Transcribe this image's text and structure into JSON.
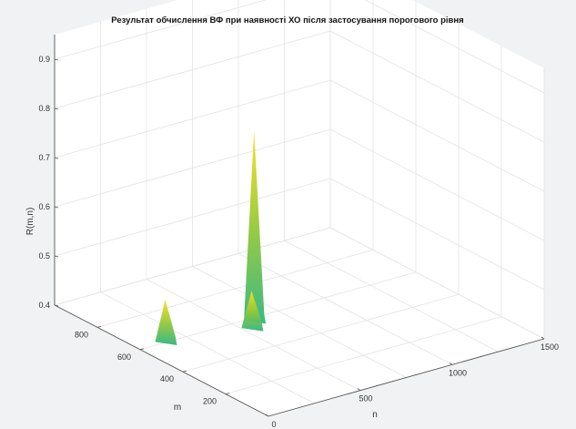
{
  "chart_data": {
    "type": "surface3d",
    "title": "Результат обчислення ВФ при наявності ХО після застосування порогового рівня",
    "xlabel": "n",
    "ylabel": "m",
    "zlabel": "R(m,n)",
    "xlim": [
      0,
      1500
    ],
    "ylim": [
      0,
      1000
    ],
    "zlim": [
      0.4,
      0.95
    ],
    "x_ticks": [
      0,
      500,
      1000,
      1500
    ],
    "y_ticks": [
      200,
      400,
      600,
      800
    ],
    "z_ticks": [
      0.4,
      0.5,
      0.6,
      0.7,
      0.8,
      0.9
    ],
    "grid": true,
    "colormap": "parula",
    "peaks": [
      {
        "n": 160,
        "m": 620,
        "height": 0.48
      },
      {
        "n": 620,
        "m": 600,
        "height": 0.78
      },
      {
        "n": 560,
        "m": 560,
        "height": 0.47
      }
    ]
  }
}
